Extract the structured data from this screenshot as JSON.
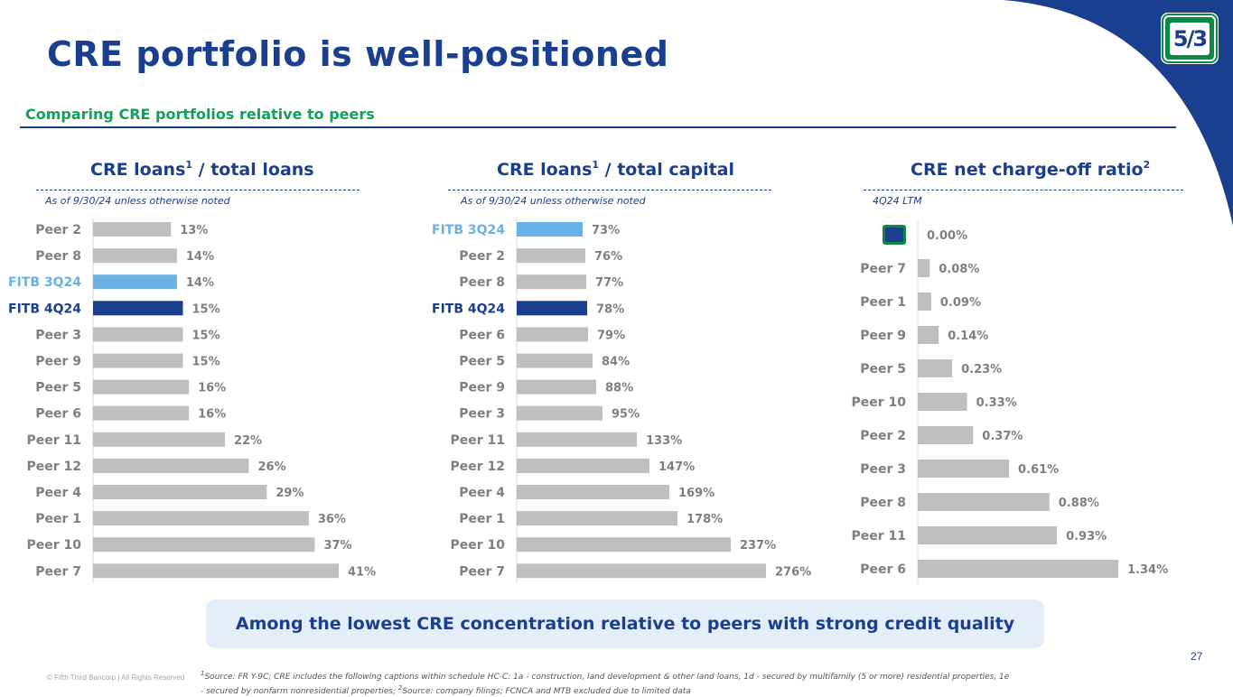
{
  "title": "CRE portfolio is well-positioned",
  "subtitle": "Comparing CRE portfolios relative to peers",
  "banner_text": "Among the lowest CRE concentration relative to peers with strong credit quality",
  "copyright": "© Fifth Third Bancorp | All Rights Reserved",
  "footnote": {
    "mark1": "1",
    "text1": "Source: FR Y-9C; CRE includes the following captions within schedule HC-C: 1a - construction, land development & other land loans, 1d - secured by multifamily (5 or more) residential properties, 1e - secured by nonfarm nonresidential properties; ",
    "mark2": "2",
    "text2": "Source: company filings; FCNCA and MTB excluded due to limited data"
  },
  "page_number": "27",
  "logo_text": "5/3",
  "colors": {
    "brand_blue": "#1b3f8f",
    "fitb_3q24": "#6ab1e7",
    "fitb_4q24": "#1b3f8f",
    "peer_bar": "#bfbfbf",
    "green": "#12a05a"
  },
  "panels": [
    {
      "title": "CRE loans",
      "title_sup": "1",
      "title_suffix": " / total loans",
      "note": "As of 9/30/24 unless otherwise noted"
    },
    {
      "title": "CRE loans",
      "title_sup": "1",
      "title_suffix": " / total capital",
      "note": "As of 9/30/24 unless otherwise noted"
    },
    {
      "title": "CRE net charge-off ratio",
      "title_sup": "2",
      "title_suffix": "",
      "note": "4Q24 LTM"
    }
  ],
  "chart_data": [
    {
      "type": "bar",
      "orientation": "horizontal",
      "title": "CRE loans¹ / total loans",
      "categories": [
        "Peer 2",
        "Peer 8",
        "FITB 3Q24",
        "FITB 4Q24",
        "Peer 3",
        "Peer 9",
        "Peer 5",
        "Peer 6",
        "Peer 11",
        "Peer 12",
        "Peer 4",
        "Peer 1",
        "Peer 10",
        "Peer 7"
      ],
      "values": [
        13,
        14,
        14,
        15,
        15,
        15,
        16,
        16,
        22,
        26,
        29,
        36,
        37,
        41
      ],
      "labels": [
        "13%",
        "14%",
        "14%",
        "15%",
        "15%",
        "15%",
        "16%",
        "16%",
        "22%",
        "26%",
        "29%",
        "36%",
        "37%",
        "41%"
      ],
      "highlight": {
        "FITB 3Q24": "fitb_3q24",
        "FITB 4Q24": "fitb_4q24"
      },
      "unit": "%",
      "xlim": [
        0,
        41
      ]
    },
    {
      "type": "bar",
      "orientation": "horizontal",
      "title": "CRE loans¹ / total capital",
      "categories": [
        "FITB 3Q24",
        "Peer 2",
        "Peer 8",
        "FITB 4Q24",
        "Peer 6",
        "Peer 5",
        "Peer 9",
        "Peer 3",
        "Peer 11",
        "Peer 12",
        "Peer 4",
        "Peer 1",
        "Peer 10",
        "Peer 7"
      ],
      "values": [
        73,
        76,
        77,
        78,
        79,
        84,
        88,
        95,
        133,
        147,
        169,
        178,
        237,
        276
      ],
      "labels": [
        "73%",
        "76%",
        "77%",
        "78%",
        "79%",
        "84%",
        "88%",
        "95%",
        "133%",
        "147%",
        "169%",
        "178%",
        "237%",
        "276%"
      ],
      "highlight": {
        "FITB 3Q24": "fitb_3q24",
        "FITB 4Q24": "fitb_4q24"
      },
      "unit": "%",
      "xlim": [
        0,
        276
      ]
    },
    {
      "type": "bar",
      "orientation": "horizontal",
      "title": "CRE net charge-off ratio²",
      "categories": [
        "FITB",
        "Peer 7",
        "Peer 1",
        "Peer 9",
        "Peer 5",
        "Peer 10",
        "Peer 2",
        "Peer 3",
        "Peer 8",
        "Peer 11",
        "Peer 6"
      ],
      "category_icons": {
        "FITB": "fifth-third-logo-icon"
      },
      "values": [
        0.0,
        0.08,
        0.09,
        0.14,
        0.23,
        0.33,
        0.37,
        0.61,
        0.88,
        0.93,
        1.34
      ],
      "labels": [
        "0.00%",
        "0.08%",
        "0.09%",
        "0.14%",
        "0.23%",
        "0.33%",
        "0.37%",
        "0.61%",
        "0.88%",
        "0.93%",
        "1.34%"
      ],
      "unit": "%",
      "xlim": [
        0,
        1.34
      ]
    }
  ]
}
